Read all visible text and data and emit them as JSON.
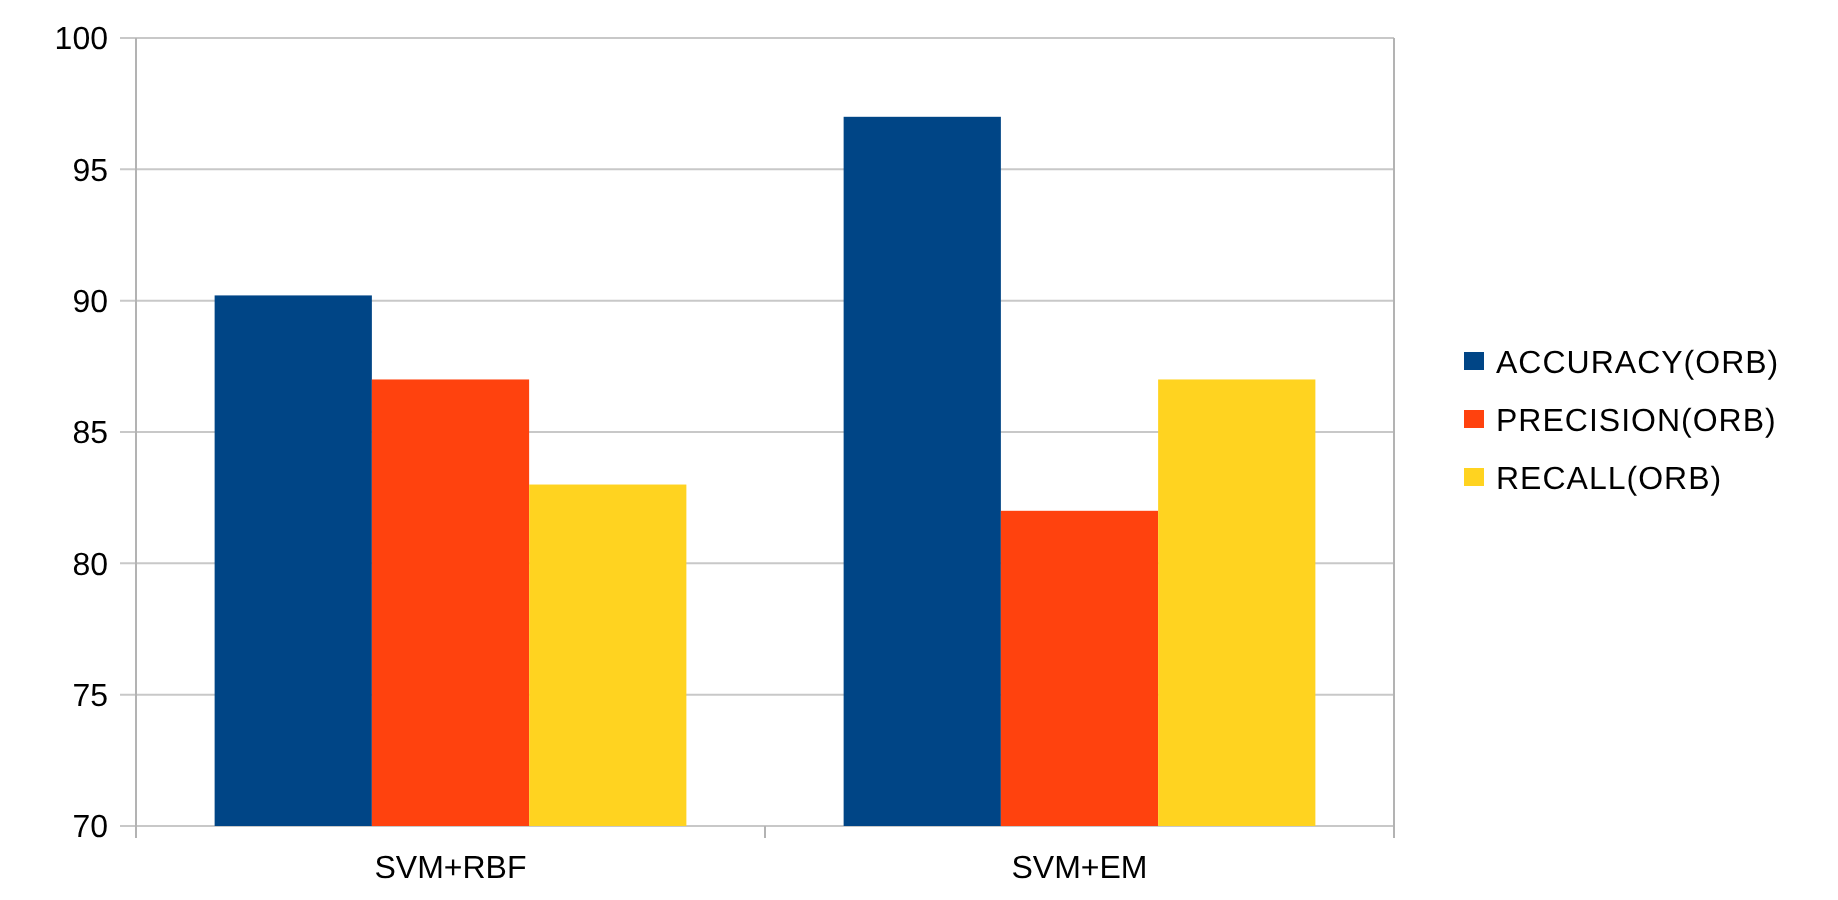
{
  "chart_data": {
    "type": "bar",
    "categories": [
      "SVM+RBF",
      "SVM+EM"
    ],
    "series": [
      {
        "name": "ACCURACY(ORB)",
        "color": "#004586",
        "values": [
          90.2,
          97
        ]
      },
      {
        "name": "PRECISION(ORB)",
        "color": "#ff420e",
        "values": [
          87,
          82
        ]
      },
      {
        "name": "RECALL(ORB)",
        "color": "#ffd320",
        "values": [
          83,
          87
        ]
      }
    ],
    "ylim": [
      70,
      100
    ],
    "yticks": [
      70,
      75,
      80,
      85,
      90,
      95,
      100
    ],
    "grid": "y",
    "legend": "right"
  }
}
